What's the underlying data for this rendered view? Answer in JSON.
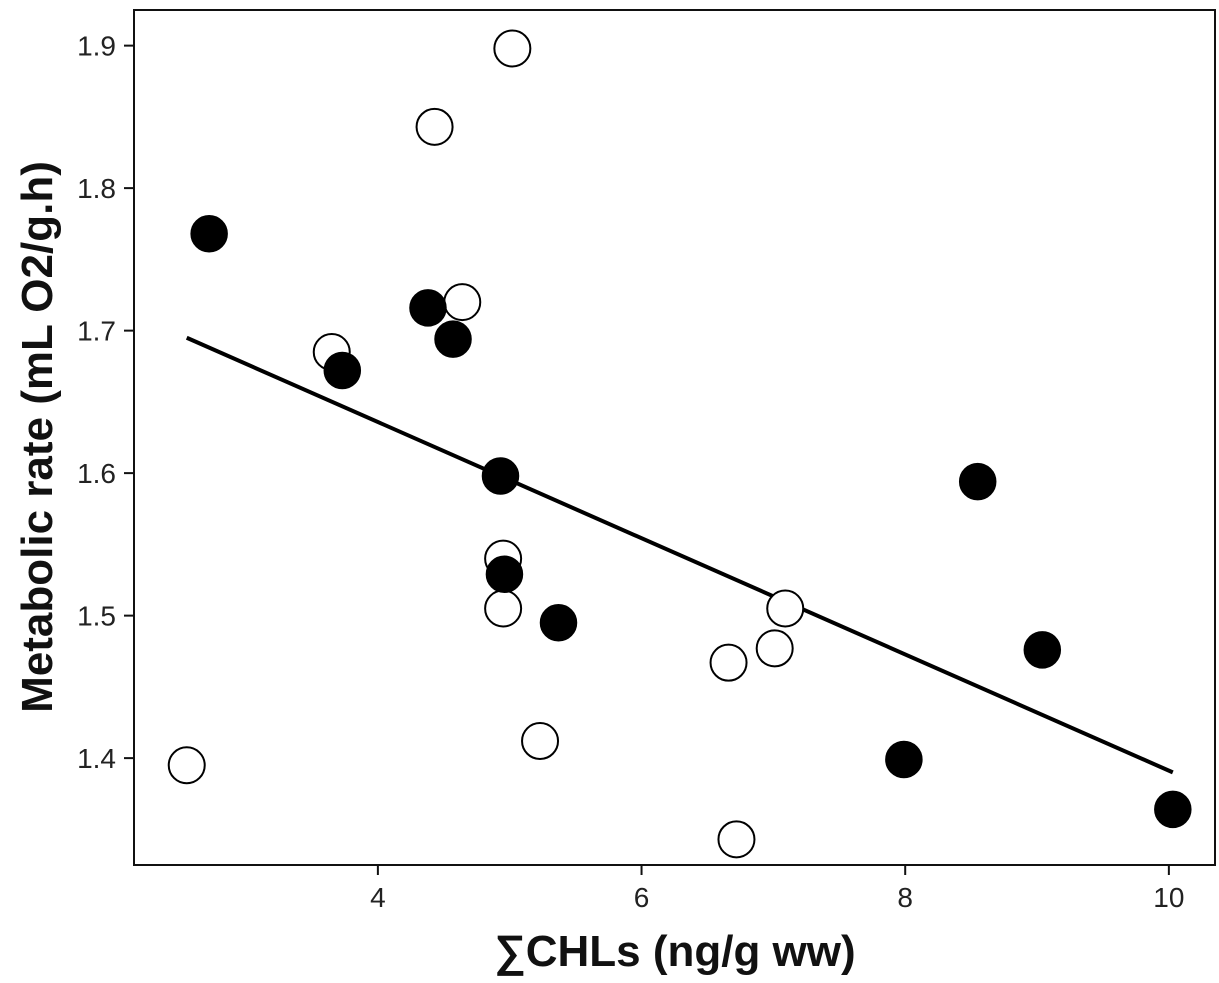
{
  "chart_data": {
    "type": "scatter",
    "title": "",
    "xlabel": "∑CHLs (ng/g ww)",
    "ylabel": "Metabolic rate (mL O2/g.h)",
    "xlim": [
      2.15,
      10.35
    ],
    "ylim": [
      1.325,
      1.925
    ],
    "xticks": [
      4,
      6,
      8,
      10
    ],
    "yticks": [
      1.4,
      1.5,
      1.6,
      1.7,
      1.8,
      1.9
    ],
    "xtick_labels": [
      "4",
      "6",
      "8",
      "10"
    ],
    "ytick_labels": [
      "1.4",
      "1.5",
      "1.6",
      "1.7",
      "1.8",
      "1.9"
    ],
    "grid": false,
    "legend": "none",
    "series": [
      {
        "marker": "open-circle",
        "color": "#ffffff",
        "points": [
          {
            "x": 2.55,
            "y": 1.395
          },
          {
            "x": 3.65,
            "y": 1.685
          },
          {
            "x": 4.43,
            "y": 1.843
          },
          {
            "x": 4.64,
            "y": 1.72
          },
          {
            "x": 5.02,
            "y": 1.898
          },
          {
            "x": 4.95,
            "y": 1.54
          },
          {
            "x": 4.95,
            "y": 1.505
          },
          {
            "x": 5.23,
            "y": 1.412
          },
          {
            "x": 6.66,
            "y": 1.467
          },
          {
            "x": 6.72,
            "y": 1.343
          },
          {
            "x": 7.01,
            "y": 1.477
          },
          {
            "x": 7.09,
            "y": 1.505
          }
        ]
      },
      {
        "marker": "filled-circle",
        "color": "#000000",
        "points": [
          {
            "x": 2.72,
            "y": 1.768
          },
          {
            "x": 3.73,
            "y": 1.672
          },
          {
            "x": 4.38,
            "y": 1.716
          },
          {
            "x": 4.57,
            "y": 1.694
          },
          {
            "x": 4.93,
            "y": 1.598
          },
          {
            "x": 4.96,
            "y": 1.529
          },
          {
            "x": 5.37,
            "y": 1.495
          },
          {
            "x": 7.99,
            "y": 1.399
          },
          {
            "x": 8.55,
            "y": 1.594
          },
          {
            "x": 9.04,
            "y": 1.476
          },
          {
            "x": 10.03,
            "y": 1.364
          }
        ]
      }
    ],
    "trend_line": {
      "x": [
        2.55,
        10.03
      ],
      "y": [
        1.695,
        1.39
      ],
      "color": "#000000"
    }
  }
}
